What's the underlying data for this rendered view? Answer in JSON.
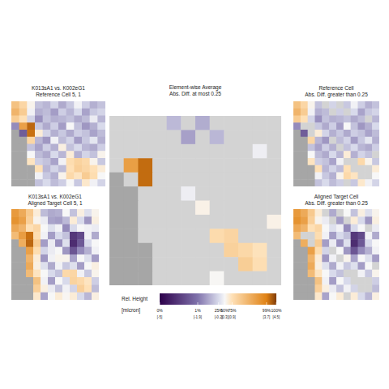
{
  "chart_data": {
    "type": "heatmap",
    "threshold": 0.25,
    "panels": [
      {
        "title": "K013sA1 vs. K002eG1",
        "subtitle": "Reference Cell 5, 1",
        "cells": [
          [
            1.8,
            1.2,
            0.4,
            -0.6,
            -0.8,
            -0.3,
            -1.0,
            -0.5,
            0.2,
            -0.4,
            -0.9,
            -0.6
          ],
          [
            2.2,
            1.5,
            0.2,
            -0.9,
            -0.7,
            -1.2,
            -0.4,
            -0.8,
            -0.2,
            -1.1,
            -0.5,
            -0.3
          ],
          [
            1.5,
            0.9,
            -0.3,
            -1.4,
            -0.6,
            -0.9,
            -0.8,
            -0.6,
            -1.0,
            -0.7,
            0.1,
            -0.8
          ],
          [
            -1.5,
            2.8,
            4.0,
            -0.5,
            -1.0,
            -0.4,
            -1.2,
            0.3,
            -0.6,
            -1.3,
            -0.9,
            -0.2
          ],
          [
            null,
            -2.5,
            3.9,
            0.6,
            -0.3,
            -0.9,
            -0.5,
            -1.0,
            -0.4,
            -0.6,
            -1.1,
            -0.7
          ],
          [
            null,
            null,
            1.2,
            -0.8,
            -1.3,
            0.2,
            -0.7,
            -0.3,
            -1.2,
            -0.5,
            0.0,
            -0.9
          ],
          [
            null,
            null,
            -0.6,
            -1.1,
            -0.4,
            -0.9,
            0.5,
            -0.6,
            -0.2,
            -0.8,
            -1.0,
            -0.4
          ],
          [
            null,
            null,
            0.3,
            -0.7,
            -1.0,
            -0.2,
            -0.8,
            0.6,
            -0.9,
            -0.3,
            -0.6,
            0.4
          ],
          [
            null,
            null,
            0.8,
            -0.4,
            -0.6,
            -1.1,
            0.2,
            1.0,
            1.3,
            1.1,
            0.4,
            -0.5
          ],
          [
            null,
            null,
            null,
            0.9,
            -0.8,
            -0.3,
            -0.7,
            0.9,
            1.4,
            1.2,
            0.9,
            0.6
          ],
          [
            null,
            null,
            null,
            0.2,
            -0.5,
            -0.9,
            0.4,
            1.1,
            0.8,
            1.5,
            1.0,
            0.3
          ],
          [
            null,
            null,
            null,
            -0.6,
            -0.2,
            -0.7,
            -0.4,
            0.3,
            -0.5,
            0.7,
            0.2,
            -0.3
          ]
        ]
      },
      {
        "title": "K013sA1 vs. K002eG1",
        "subtitle": "Aligned Target Cell 5, 1",
        "cells": [
          [
            3.0,
            2.5,
            1.6,
            0.6,
            -0.7,
            -1.0,
            -0.9,
            0.3,
            -0.6,
            0.5,
            -0.1,
            0.4
          ],
          [
            3.2,
            2.8,
            1.4,
            0.4,
            0.1,
            -1.1,
            -1.2,
            -0.75,
            0.6,
            -0.2,
            -1.3,
            0.5
          ],
          [
            2.6,
            2.2,
            0.9,
            1.2,
            0.3,
            -0.1,
            0.2,
            -1.5,
            -0.2,
            0.3,
            0.2,
            0.1
          ],
          [
            2.0,
            2.9,
            3.9,
            1.0,
            0.2,
            -1.2,
            -0.2,
            -0.6,
            -3.5,
            -3.0,
            0.2,
            -1.0
          ],
          [
            null,
            2.4,
            4.0,
            1.5,
            -1.2,
            0.1,
            -1.4,
            -0.1,
            -3.8,
            -2.6,
            -0.2,
            0.3
          ],
          [
            null,
            null,
            2.8,
            1.0,
            -0.3,
            0.1,
            0.3,
            -1.3,
            -2.7,
            -1.5,
            -0.9,
            0.2
          ],
          [
            null,
            null,
            2.2,
            0.6,
            -1.3,
            0.2,
            0.4,
            0.4,
            -1.1,
            0.3,
            -0.1,
            -1.2
          ],
          [
            null,
            null,
            2.5,
            0.5,
            -0.1,
            -1.0,
            0.2,
            -0.5,
            -0.1,
            -1.2,
            0.3,
            0.5
          ],
          [
            null,
            null,
            2.0,
            0.8,
            0.3,
            -0.2,
            -0.6,
            1.1,
            1.2,
            0.2,
            -0.5,
            0.4
          ],
          [
            null,
            null,
            null,
            1.8,
            0.2,
            -1.2,
            0.3,
            -0.2,
            1.3,
            1.1,
            0.8,
            -0.4
          ],
          [
            null,
            null,
            null,
            1.4,
            0.5,
            0.1,
            -0.6,
            0.2,
            -0.3,
            1.4,
            0.9,
            -0.7
          ],
          [
            null,
            null,
            null,
            0.7,
            -1.1,
            0.3,
            0.6,
            0.35,
            0.6,
            -0.2,
            -0.8,
            0.5
          ]
        ]
      },
      {
        "title": "Element-wise Average",
        "subtitle": "Abs. Diff. at most 0.25"
      },
      {
        "title": "Reference Cell",
        "subtitle": "Abs. Diff. greater than 0.25"
      },
      {
        "title": "Aligned Target Cell",
        "subtitle": "Abs. Diff. greater than 0.25"
      }
    ],
    "colorbar": {
      "title": "Rel. Height",
      "unit": "[micron]",
      "range": [
        -5,
        4.5
      ],
      "ticks": [
        {
          "value": -5,
          "label": "0%"
        },
        {
          "value": -1.9,
          "label": "1%"
        },
        {
          "value": -0.2,
          "label": "25%"
        },
        {
          "value": 0.3,
          "label": "50%"
        },
        {
          "value": 0.9,
          "label": "75%"
        },
        {
          "value": 3.7,
          "label": "99%"
        },
        {
          "value": 4.5,
          "label": "100%"
        }
      ],
      "tick_sublabels": [
        "[-5]",
        "[-1.9]",
        "[-0.2]",
        "[0.3]",
        "[0.9]",
        "[3.7]",
        "[4.5]"
      ],
      "colors": [
        "#2d004b",
        "#8073ac",
        "#d8daeb",
        "#f7f7f7",
        "#fee0b6",
        "#e08214",
        "#7f3b08"
      ]
    }
  }
}
